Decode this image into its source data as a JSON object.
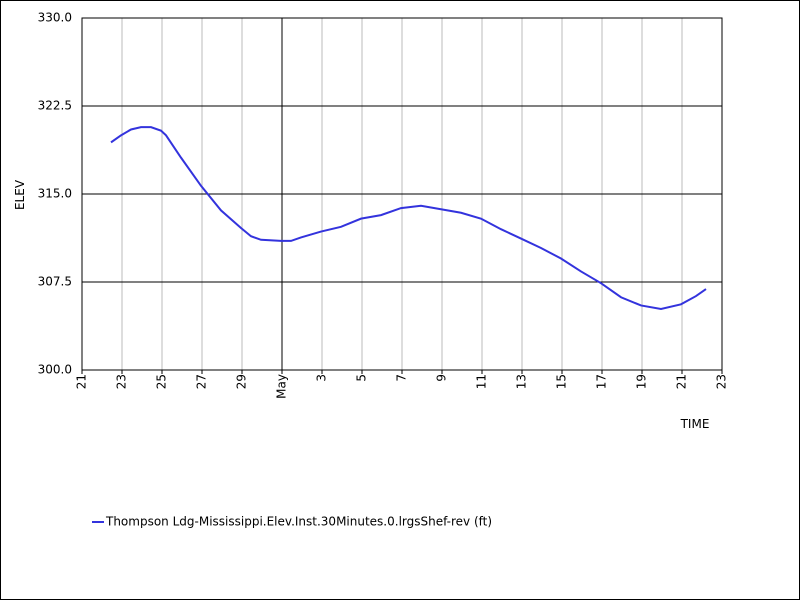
{
  "chart_data": {
    "type": "line",
    "ylabel": "ELEV",
    "xlabel": "TIME",
    "xlim": [
      0,
      32
    ],
    "xticks": [
      {
        "value": 0,
        "label": "21"
      },
      {
        "value": 2,
        "label": "23"
      },
      {
        "value": 4,
        "label": "25"
      },
      {
        "value": 6,
        "label": "27"
      },
      {
        "value": 8,
        "label": "29"
      },
      {
        "value": 10,
        "label": "May"
      },
      {
        "value": 12,
        "label": "3"
      },
      {
        "value": 14,
        "label": "5"
      },
      {
        "value": 16,
        "label": "7"
      },
      {
        "value": 18,
        "label": "9"
      },
      {
        "value": 20,
        "label": "11"
      },
      {
        "value": 22,
        "label": "13"
      },
      {
        "value": 24,
        "label": "15"
      },
      {
        "value": 26,
        "label": "17"
      },
      {
        "value": 28,
        "label": "19"
      },
      {
        "value": 30,
        "label": "21"
      },
      {
        "value": 32,
        "label": "23"
      }
    ],
    "ylim": [
      300,
      330
    ],
    "yticks": [
      {
        "value": 300,
        "label": "300.0"
      },
      {
        "value": 307.5,
        "label": "307.5"
      },
      {
        "value": 315,
        "label": "315.0"
      },
      {
        "value": 322.5,
        "label": "322.5"
      },
      {
        "value": 330,
        "label": "330.0"
      }
    ],
    "grid": true,
    "x": [
      1.45,
      1.95,
      2.45,
      2.95,
      3.45,
      3.95,
      4.2,
      4.95,
      5.95,
      6.95,
      7.95,
      8.45,
      8.95,
      9.95,
      10.45,
      10.95,
      11.95,
      12.95,
      13.95,
      14.95,
      15.95,
      16.95,
      17.95,
      18.95,
      19.95,
      20.95,
      21.95,
      22.95,
      23.95,
      24.95,
      25.95,
      26.95,
      27.95,
      28.95,
      29.95,
      30.7,
      31.2
    ],
    "series": [
      {
        "name": "Thompson Ldg-Mississippi.Elev.Inst.30Minutes.0.lrgsShef-rev (ft)",
        "color": "#3333dd",
        "values": [
          319.4,
          320.0,
          320.5,
          320.7,
          320.7,
          320.4,
          320.0,
          318.1,
          315.7,
          313.6,
          312.1,
          311.4,
          311.1,
          311.0,
          311.0,
          311.3,
          311.8,
          312.2,
          312.9,
          313.2,
          313.8,
          314.0,
          313.7,
          313.4,
          312.9,
          312.0,
          311.2,
          310.4,
          309.5,
          308.4,
          307.4,
          306.2,
          305.5,
          305.2,
          305.6,
          306.3,
          306.9
        ]
      }
    ]
  }
}
